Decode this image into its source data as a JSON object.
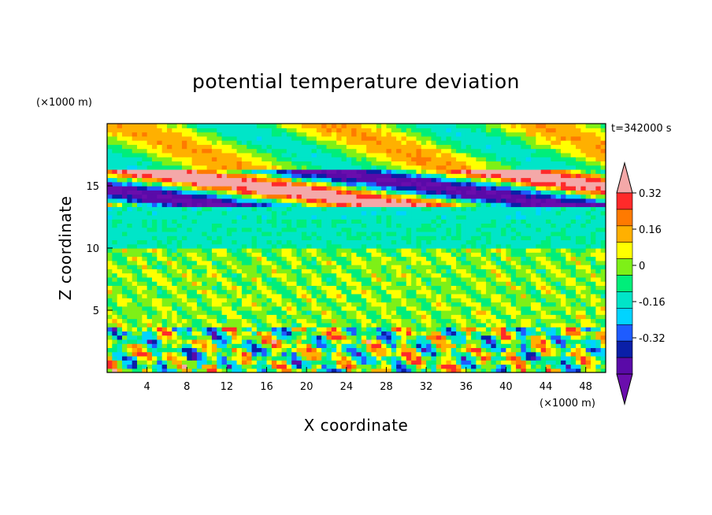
{
  "chart_data": {
    "type": "heatmap",
    "title": "potential temperature deviation",
    "xlabel": "X coordinate",
    "ylabel": "Z coordinate",
    "x_unit": "(×1000 m)",
    "y_unit": "(×1000 m)",
    "time_label": "t=342000 s",
    "xlim": [
      0,
      50
    ],
    "ylim": [
      0,
      20
    ],
    "x_ticks": [
      4,
      8,
      12,
      16,
      20,
      24,
      28,
      32,
      36,
      40,
      44,
      48
    ],
    "y_ticks": [
      5,
      10,
      15
    ],
    "grid": false,
    "colorbar": {
      "placement": "right",
      "levels": [
        -0.48,
        -0.4,
        -0.32,
        -0.24,
        -0.16,
        -0.08,
        0,
        0.08,
        0.16,
        0.24,
        0.32,
        0.4
      ],
      "colors": [
        "#6a0dad",
        "#5a0aa8",
        "#0a1fa8",
        "#1e5cff",
        "#00d4ff",
        "#00e5c8",
        "#00ee7a",
        "#7ef017",
        "#ffff00",
        "#ffb000",
        "#ff7a00",
        "#ff2a2a",
        "#f4a8a8"
      ],
      "labels": [
        "0.32",
        "0.16",
        "0",
        "-0.16",
        "-0.32"
      ],
      "label_values": [
        0.32,
        0.16,
        0,
        -0.16,
        -0.32
      ]
    },
    "bands": [
      {
        "z": [
          0.0,
          3.6
        ],
        "pattern": "turbulent",
        "amp": 0.35
      },
      {
        "z": [
          3.6,
          10.0
        ],
        "pattern": "noise",
        "amp": 0.08
      },
      {
        "z": [
          10.0,
          12.5
        ],
        "pattern": "layer",
        "value": -0.1
      },
      {
        "z": [
          12.5,
          13.5
        ],
        "pattern": "layer",
        "value": -0.12
      },
      {
        "z": [
          13.5,
          16.5
        ],
        "pattern": "strong",
        "amp": 0.5
      },
      {
        "z": [
          16.5,
          20.0
        ],
        "pattern": "upper",
        "amp": 0.18
      }
    ]
  }
}
